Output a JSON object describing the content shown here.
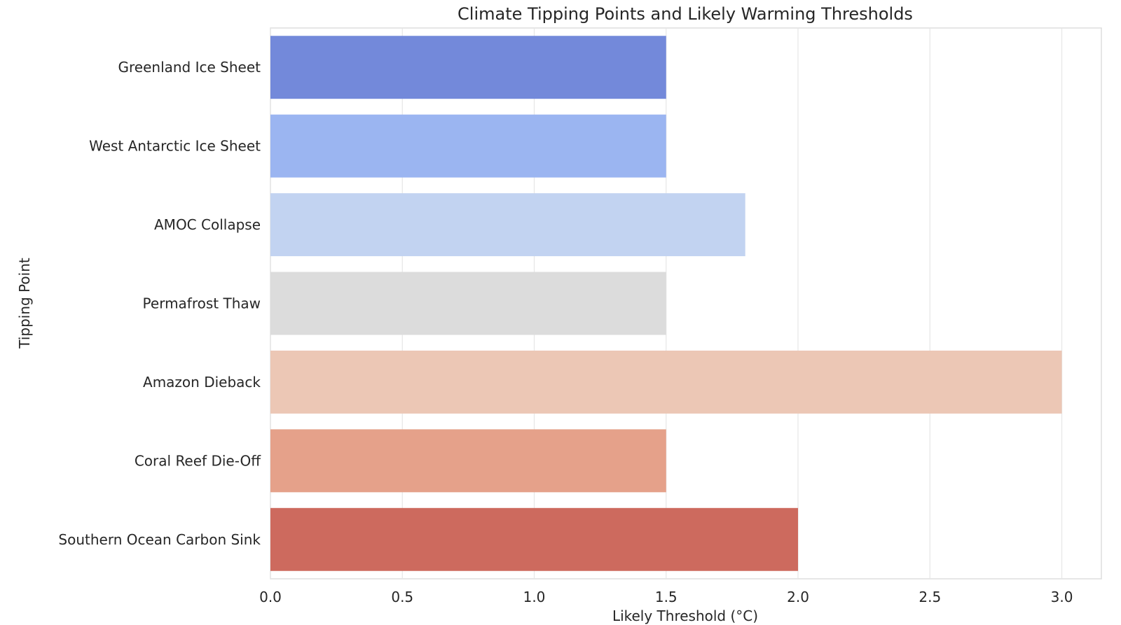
{
  "chart_data": {
    "type": "bar",
    "orientation": "horizontal",
    "title": "Climate Tipping Points and Likely Warming Thresholds",
    "xlabel": "Likely Threshold (°C)",
    "ylabel": "Tipping Point",
    "xlim": [
      0,
      3.15
    ],
    "xticks": [
      "0.0",
      "0.5",
      "1.0",
      "1.5",
      "2.0",
      "2.5",
      "3.0"
    ],
    "grid": "vertical",
    "legend": "none",
    "categories": [
      "Greenland Ice Sheet",
      "West Antarctic Ice Sheet",
      "AMOC Collapse",
      "Permafrost Thaw",
      "Amazon Dieback",
      "Coral Reef Die-Off",
      "Southern Ocean Carbon Sink"
    ],
    "values": [
      1.5,
      1.5,
      1.8,
      1.5,
      3.0,
      1.5,
      2.0
    ],
    "colors": [
      "#7389da",
      "#9bb5f1",
      "#c2d3f1",
      "#dcdcdc",
      "#ecc7b5",
      "#e5a18a",
      "#cd6a5e"
    ]
  }
}
